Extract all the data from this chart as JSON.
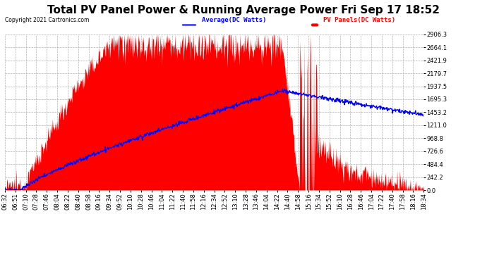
{
  "title": "Total PV Panel Power & Running Average Power Fri Sep 17 18:52",
  "copyright": "Copyright 2021 Cartronics.com",
  "legend_avg": "Average(DC Watts)",
  "legend_pv": "PV Panels(DC Watts)",
  "y_max": 2906.3,
  "y_min": 0.0,
  "y_ticks": [
    0.0,
    242.2,
    484.4,
    726.6,
    968.8,
    1211.0,
    1453.2,
    1695.3,
    1937.5,
    2179.7,
    2421.9,
    2664.1,
    2906.3
  ],
  "pv_color": "#ff0000",
  "avg_color": "#0000ff",
  "bg_color": "#ffffff",
  "grid_color": "#b0b0b0",
  "title_fontsize": 11,
  "tick_fontsize": 6,
  "figsize": [
    6.9,
    3.75
  ],
  "dpi": 100,
  "x_labels": [
    "06:32",
    "06:51",
    "07:10",
    "07:28",
    "07:46",
    "08:04",
    "08:22",
    "08:40",
    "08:58",
    "09:16",
    "09:34",
    "09:52",
    "10:10",
    "10:28",
    "10:46",
    "11:04",
    "11:22",
    "11:40",
    "11:58",
    "12:16",
    "12:34",
    "12:52",
    "13:10",
    "13:28",
    "13:46",
    "14:04",
    "14:22",
    "14:40",
    "14:58",
    "15:16",
    "15:34",
    "15:52",
    "16:10",
    "16:28",
    "16:46",
    "17:04",
    "17:22",
    "17:40",
    "17:58",
    "18:16",
    "18:34"
  ]
}
